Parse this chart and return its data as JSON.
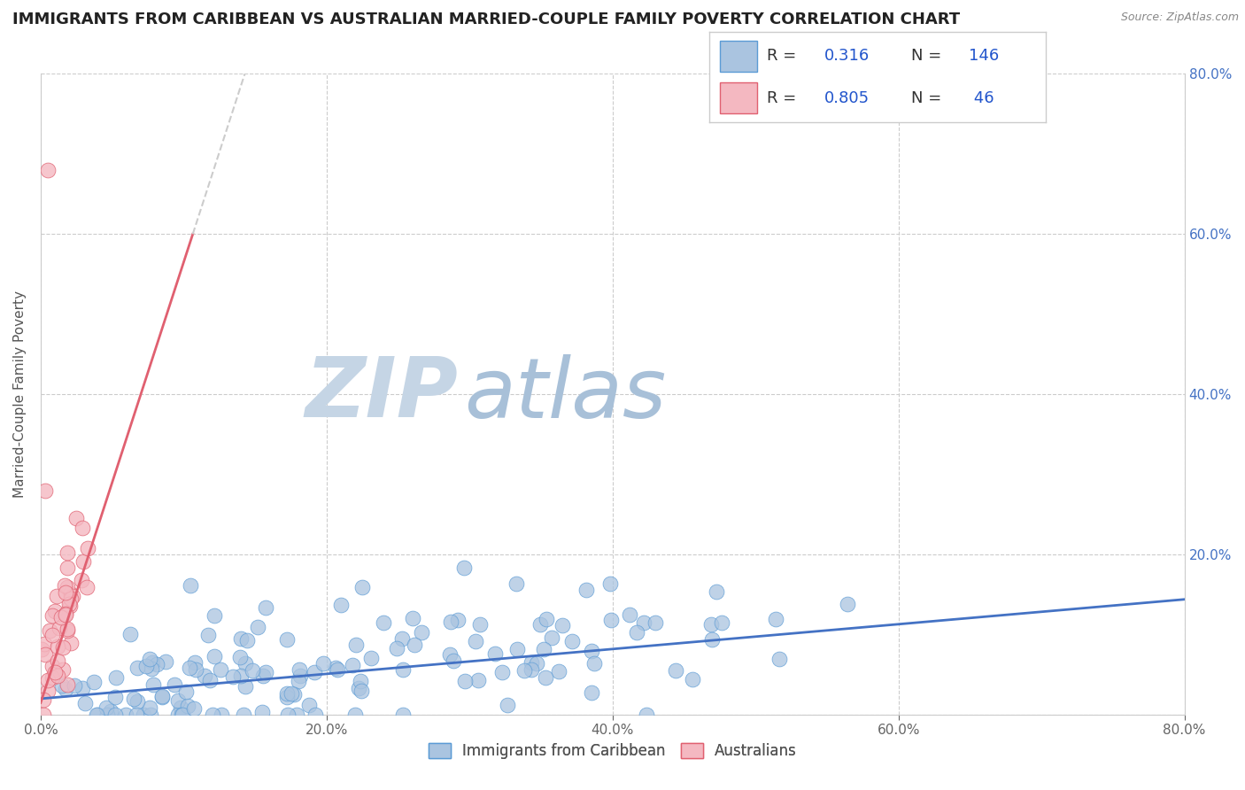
{
  "title": "IMMIGRANTS FROM CARIBBEAN VS AUSTRALIAN MARRIED-COUPLE FAMILY POVERTY CORRELATION CHART",
  "source_text": "Source: ZipAtlas.com",
  "ylabel": "Married-Couple Family Poverty",
  "watermark_zip": "ZIP",
  "watermark_atlas": "atlas",
  "xlim": [
    0.0,
    0.8
  ],
  "ylim": [
    0.0,
    0.8
  ],
  "xticks": [
    0.0,
    0.2,
    0.4,
    0.6,
    0.8
  ],
  "yticks": [
    0.0,
    0.2,
    0.4,
    0.6,
    0.8
  ],
  "xticklabels": [
    "0.0%",
    "20.0%",
    "40.0%",
    "60.0%",
    "80.0%"
  ],
  "yticklabels_right": [
    "",
    "20.0%",
    "40.0%",
    "60.0%",
    "80.0%"
  ],
  "background_color": "#ffffff",
  "grid_color": "#cccccc",
  "blue_color": "#aac4e0",
  "blue_edge": "#5b9bd5",
  "blue_line": "#4472c4",
  "pink_color": "#f4b8c1",
  "pink_edge": "#e06070",
  "pink_line": "#e06070",
  "blue_R": 0.316,
  "blue_N": 146,
  "pink_R": 0.805,
  "pink_N": 46,
  "blue_slope": 0.155,
  "blue_intercept": 0.02,
  "pink_slope": 5.5,
  "pink_intercept": 0.015,
  "pink_solid_cutoff": 0.6,
  "legend_color": "#2255cc",
  "title_color": "#222222",
  "title_fontsize": 13,
  "ylabel_fontsize": 11,
  "tick_fontsize": 11,
  "watermark_fontsize_zip": 68,
  "watermark_fontsize_atlas": 68,
  "watermark_color_zip": "#c5d5e5",
  "watermark_color_atlas": "#a8c0d8",
  "marker_size": 7
}
